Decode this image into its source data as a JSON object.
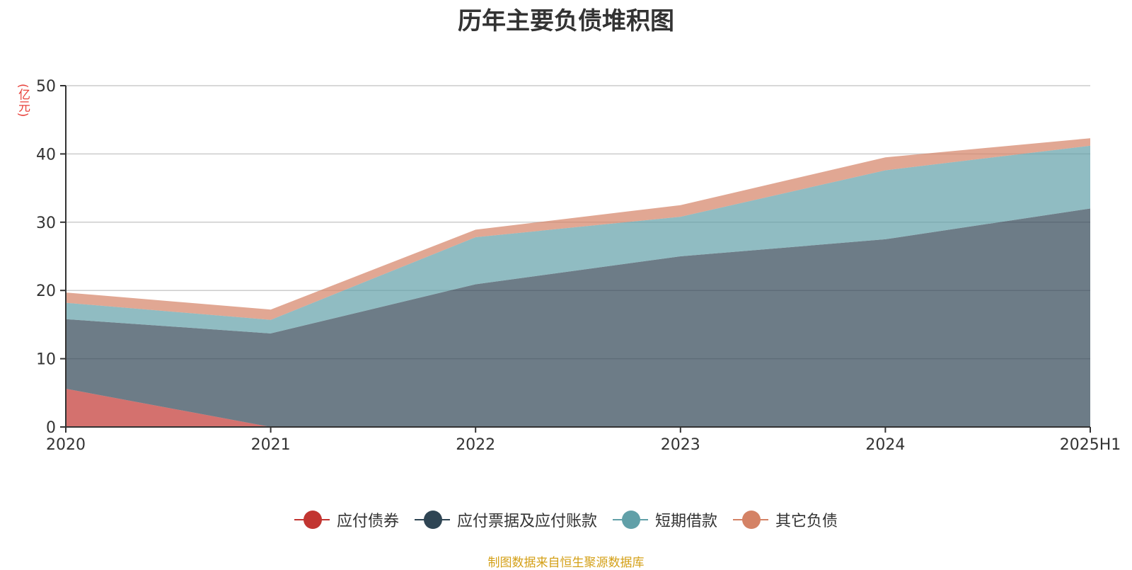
{
  "title": "历年主要负债堆积图",
  "unit_label": "(亿元)",
  "source_note": "制图数据来自恒生聚源数据库",
  "chart_data": {
    "type": "area",
    "stacked": true,
    "title": "历年主要负债堆积图",
    "ylabel": "(亿元)",
    "xlabel": "",
    "categories": [
      "2020",
      "2021",
      "2022",
      "2023",
      "2024",
      "2025H1"
    ],
    "ylim": [
      0,
      50
    ],
    "yticks": [
      0,
      10,
      20,
      30,
      40,
      50
    ],
    "grid": true,
    "legend_position": "bottom",
    "series": [
      {
        "name": "应付债券",
        "color": "#c23531",
        "values": [
          5.6,
          0,
          0,
          0,
          0,
          0
        ]
      },
      {
        "name": "应付票据及应付账款",
        "color": "#2f4554",
        "values": [
          10.2,
          13.7,
          20.9,
          25.0,
          27.5,
          32.0
        ]
      },
      {
        "name": "短期借款",
        "color": "#61a0a8",
        "values": [
          2.4,
          2.0,
          6.9,
          5.8,
          10.1,
          9.2
        ]
      },
      {
        "name": "其它负债",
        "color": "#d48265",
        "values": [
          1.5,
          1.5,
          1.1,
          1.7,
          1.9,
          1.1
        ]
      }
    ]
  }
}
